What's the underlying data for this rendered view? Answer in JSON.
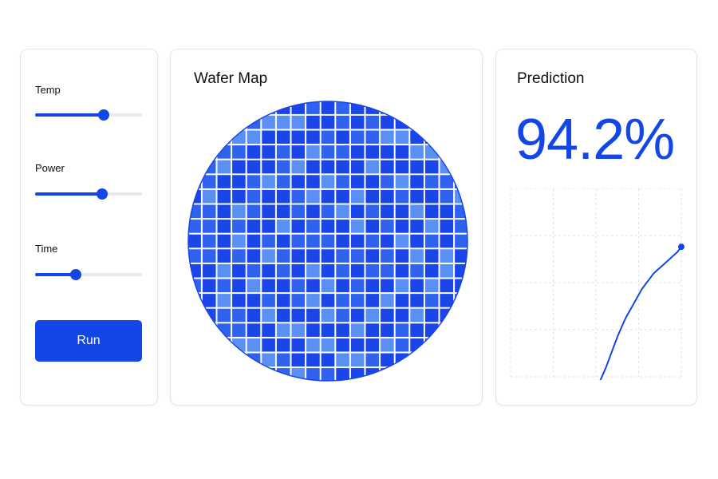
{
  "controls": {
    "sliders": [
      {
        "label": "Temp",
        "value": 0.64
      },
      {
        "label": "Power",
        "value": 0.63
      },
      {
        "label": "Time",
        "value": 0.38
      }
    ],
    "run_label": "Run"
  },
  "wafer": {
    "title": "Wafer Map",
    "colors": {
      "dark": "#1a45e8",
      "mid": "#2f63ef",
      "light": "#5a8ff4"
    }
  },
  "prediction": {
    "title": "Prediction",
    "value": "94.2%",
    "accent": "#1346e6"
  },
  "chart_data": {
    "type": "line",
    "title": "",
    "xlabel": "",
    "ylabel": "",
    "grid": true,
    "x": [
      0,
      1,
      2,
      3,
      4,
      5,
      6,
      7,
      8,
      9,
      10,
      11,
      12,
      13,
      14,
      15,
      16,
      17,
      18,
      19,
      20,
      21,
      22,
      23,
      24,
      25,
      26,
      27,
      28,
      29,
      30,
      31,
      32,
      33,
      34,
      35,
      36,
      37,
      38,
      39,
      40,
      41,
      42,
      43
    ],
    "y": [
      0.03,
      0.04,
      0.05,
      0.05,
      0.06,
      0.05,
      0.06,
      0.06,
      0.05,
      0.06,
      0.06,
      0.07,
      0.06,
      0.07,
      0.08,
      0.08,
      0.09,
      0.1,
      0.11,
      0.12,
      0.15,
      0.18,
      0.22,
      0.27,
      0.32,
      0.38,
      0.44,
      0.5,
      0.55,
      0.6,
      0.64,
      0.68,
      0.72,
      0.76,
      0.79,
      0.82,
      0.85,
      0.87,
      0.89,
      0.91,
      0.93,
      0.95,
      0.97,
      1.0
    ],
    "ylim": [
      0,
      1.05
    ]
  }
}
